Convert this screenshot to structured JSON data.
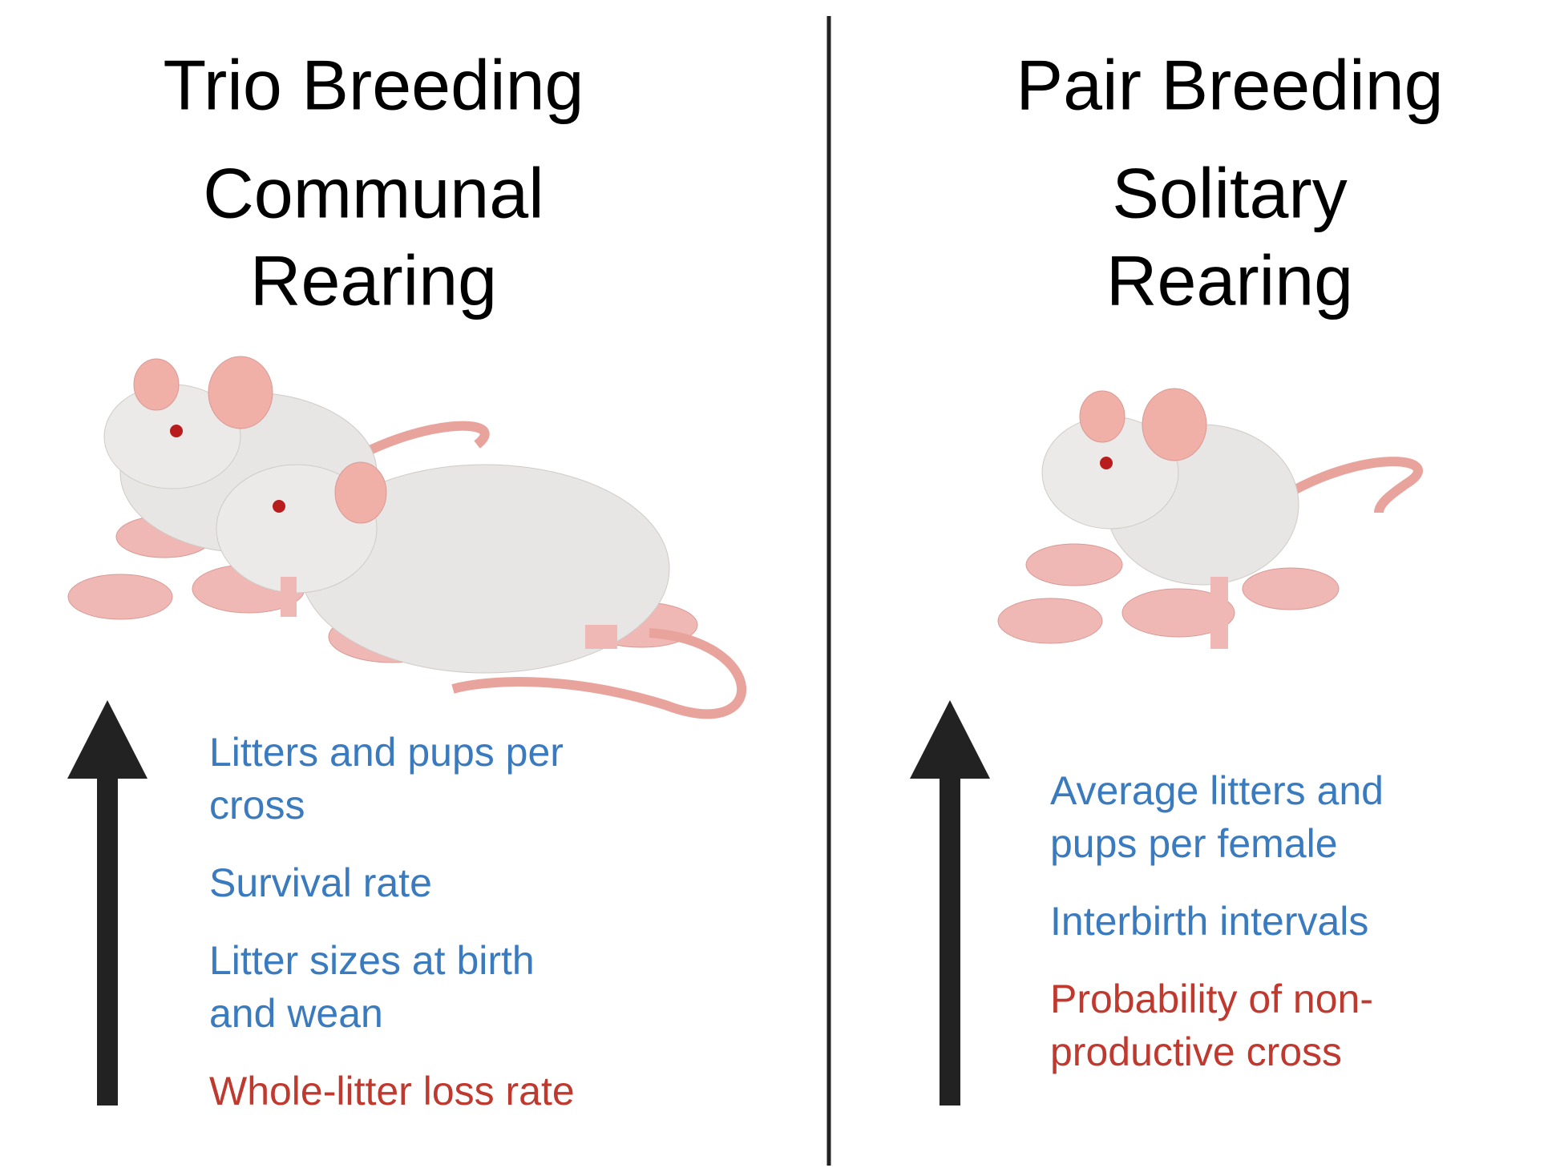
{
  "panels": [
    {
      "title": "Trio Breeding",
      "subtitle": [
        "Communal",
        "Rearing"
      ],
      "items": [
        {
          "lines": [
            "Litters and pups per",
            "cross"
          ],
          "color": "#3a7bbf"
        },
        {
          "lines": [
            "Survival rate"
          ],
          "color": "#3a7bbf"
        },
        {
          "lines": [
            "Litter sizes at birth",
            "and wean"
          ],
          "color": "#3a7bbf"
        },
        {
          "lines": [
            "Whole-litter loss rate"
          ],
          "color": "#c0392f"
        }
      ]
    },
    {
      "title": "Pair Breeding",
      "subtitle": [
        "Solitary",
        "Rearing"
      ],
      "items": [
        {
          "lines": [
            "Average litters and",
            "pups per female"
          ],
          "color": "#3a7bbf"
        },
        {
          "lines": [
            "Interbirth intervals"
          ],
          "color": "#3a7bbf"
        },
        {
          "lines": [
            "Probability of non-",
            "productive cross"
          ],
          "color": "#c0392f"
        }
      ]
    }
  ]
}
